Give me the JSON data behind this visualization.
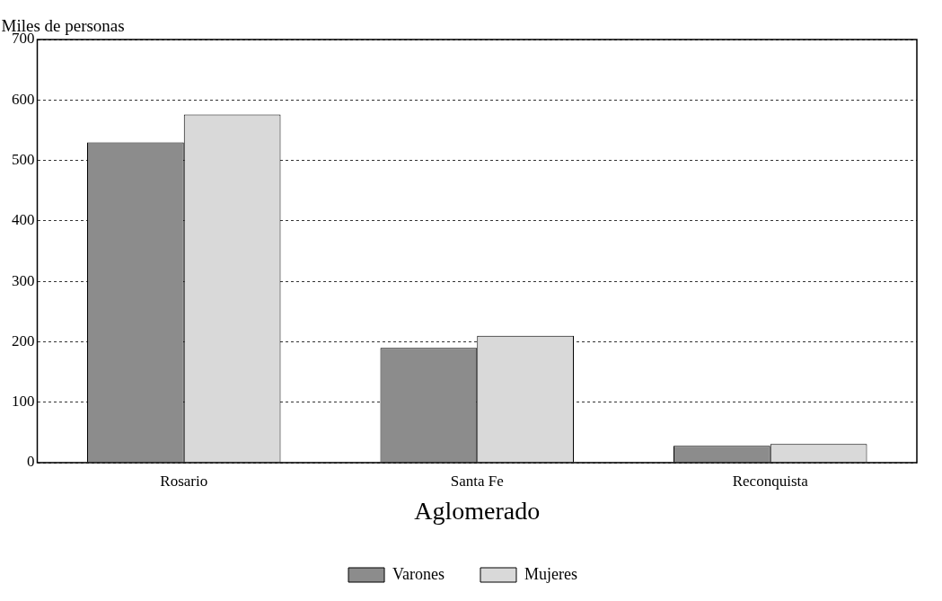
{
  "chart_data": {
    "type": "bar",
    "xlabel": "Aglomerado",
    "ylabel": "Miles de personas",
    "categories": [
      "Rosario",
      "Santa Fe",
      "Reconquista"
    ],
    "series": [
      {
        "name": "Varones",
        "color": "#8c8c8c",
        "values": [
          530,
          190,
          28
        ]
      },
      {
        "name": "Mujeres",
        "color": "#d9d9d9",
        "values": [
          576,
          210,
          31
        ]
      }
    ],
    "ylim": [
      0,
      700
    ],
    "yticks": [
      0,
      100,
      200,
      300,
      400,
      500,
      600,
      700
    ],
    "grid": "y",
    "legend": "bottom"
  }
}
